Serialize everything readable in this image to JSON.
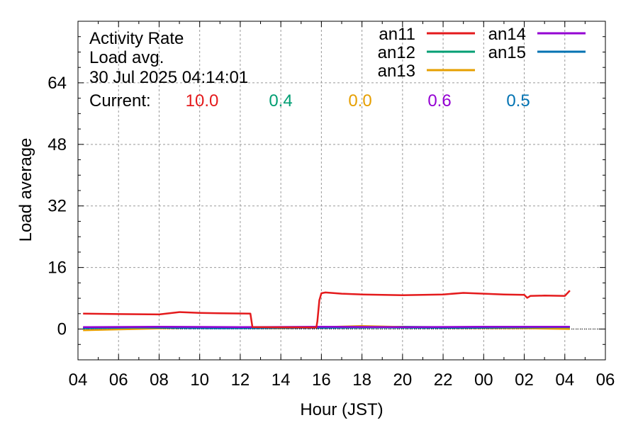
{
  "chart_data": {
    "type": "line",
    "title_lines": [
      "Activity Rate",
      "Load avg.",
      "30 Jul 2025 04:14:01"
    ],
    "current_label": "Current:",
    "xlabel": "Hour (JST)",
    "ylabel": "Load average",
    "x_ticks": [
      "04",
      "06",
      "08",
      "10",
      "12",
      "14",
      "16",
      "18",
      "20",
      "22",
      "00",
      "02",
      "04",
      "06"
    ],
    "x_range_hours": [
      4,
      30
    ],
    "y_ticks": [
      0,
      16,
      32,
      48,
      64
    ],
    "y_range": [
      -8,
      80
    ],
    "grid": true,
    "legend_position": "top-right",
    "series": [
      {
        "name": "an11",
        "color": "#e41a1c",
        "current": "10.0",
        "points": [
          [
            4.25,
            4.0
          ],
          [
            6,
            3.9
          ],
          [
            8,
            3.8
          ],
          [
            9,
            4.4
          ],
          [
            10,
            4.2
          ],
          [
            11,
            4.1
          ],
          [
            12.5,
            4.0
          ],
          [
            12.6,
            0.5
          ],
          [
            15.75,
            0.4
          ],
          [
            15.8,
            2.0
          ],
          [
            15.9,
            7.5
          ],
          [
            16.0,
            9.3
          ],
          [
            16.2,
            9.5
          ],
          [
            17,
            9.2
          ],
          [
            18,
            9.0
          ],
          [
            20,
            8.8
          ],
          [
            22,
            9.0
          ],
          [
            23,
            9.4
          ],
          [
            24,
            9.2
          ],
          [
            25,
            9.0
          ],
          [
            26,
            8.9
          ],
          [
            26.15,
            8.1
          ],
          [
            26.3,
            8.6
          ],
          [
            27,
            8.7
          ],
          [
            28.0,
            8.6
          ],
          [
            28.25,
            10.0
          ]
        ]
      },
      {
        "name": "an12",
        "color": "#009e73",
        "current": "0.4",
        "points": [
          [
            4.25,
            0.3
          ],
          [
            8,
            0.4
          ],
          [
            12,
            0.3
          ],
          [
            16,
            0.4
          ],
          [
            20,
            0.6
          ],
          [
            24,
            0.4
          ],
          [
            28.25,
            0.4
          ]
        ]
      },
      {
        "name": "an13",
        "color": "#e69f00",
        "current": "0.0",
        "points": [
          [
            4.25,
            -0.3
          ],
          [
            10,
            0.4
          ],
          [
            14,
            0.2
          ],
          [
            18,
            0.8
          ],
          [
            22,
            0.3
          ],
          [
            26,
            0.2
          ],
          [
            28.25,
            0.0
          ]
        ]
      },
      {
        "name": "an14",
        "color": "#9400d3",
        "current": "0.6",
        "points": [
          [
            4.25,
            0.5
          ],
          [
            8,
            0.6
          ],
          [
            12,
            0.5
          ],
          [
            16,
            0.6
          ],
          [
            20,
            0.5
          ],
          [
            24,
            0.6
          ],
          [
            28.25,
            0.6
          ]
        ]
      },
      {
        "name": "an15",
        "color": "#0072b2",
        "current": "0.5",
        "points": [
          [
            4.25,
            0.2
          ],
          [
            7,
            0.4
          ],
          [
            11,
            0.2
          ],
          [
            15,
            0.3
          ],
          [
            19,
            0.4
          ],
          [
            23,
            0.3
          ],
          [
            28.25,
            0.5
          ]
        ]
      }
    ]
  }
}
